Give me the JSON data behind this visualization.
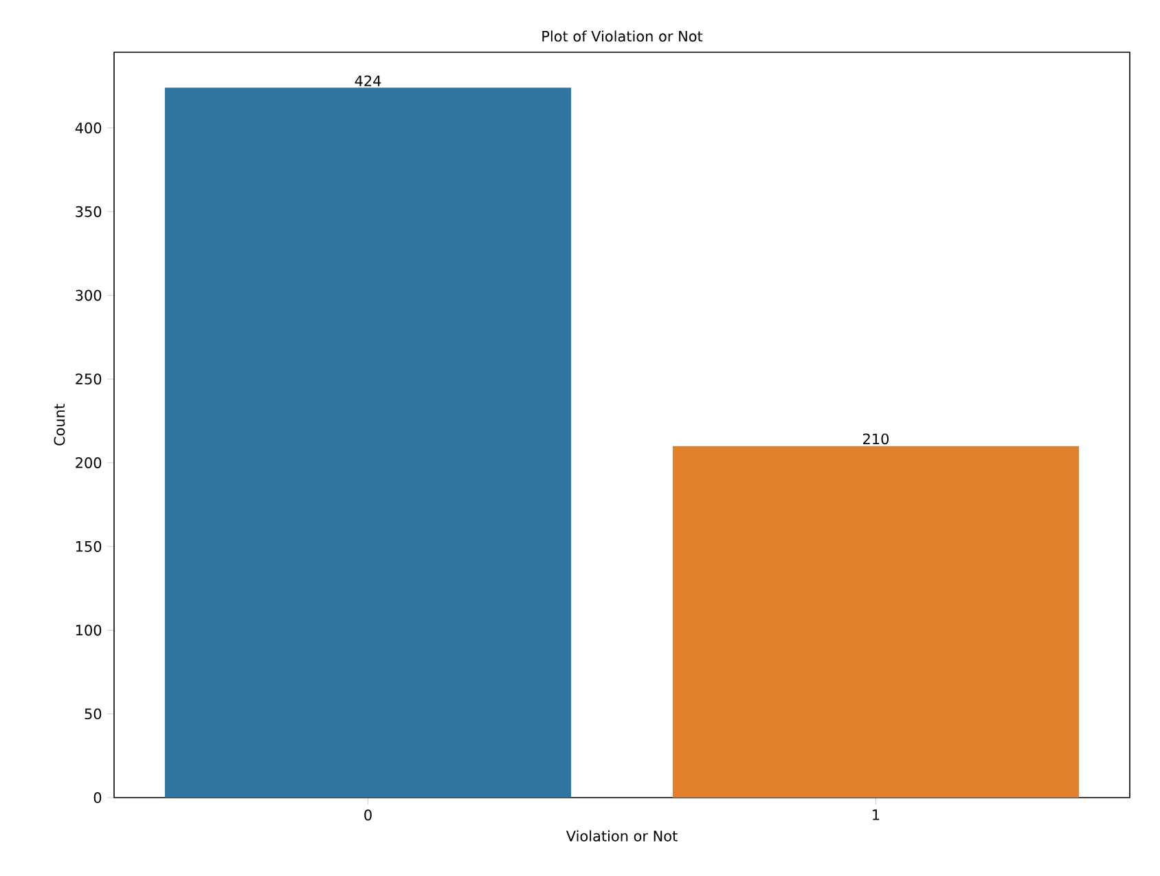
{
  "chart_data": {
    "type": "bar",
    "title": "Plot of Violation or Not",
    "xlabel": "Violation or Not",
    "ylabel": "Count",
    "categories": [
      "0",
      "1"
    ],
    "values": [
      424,
      210
    ],
    "colors": [
      "#3274a1",
      "#e1812c"
    ],
    "data_labels": true,
    "ylim": [
      0,
      445.2
    ],
    "yticks": [
      0,
      50,
      100,
      150,
      200,
      250,
      300,
      350,
      400
    ]
  }
}
